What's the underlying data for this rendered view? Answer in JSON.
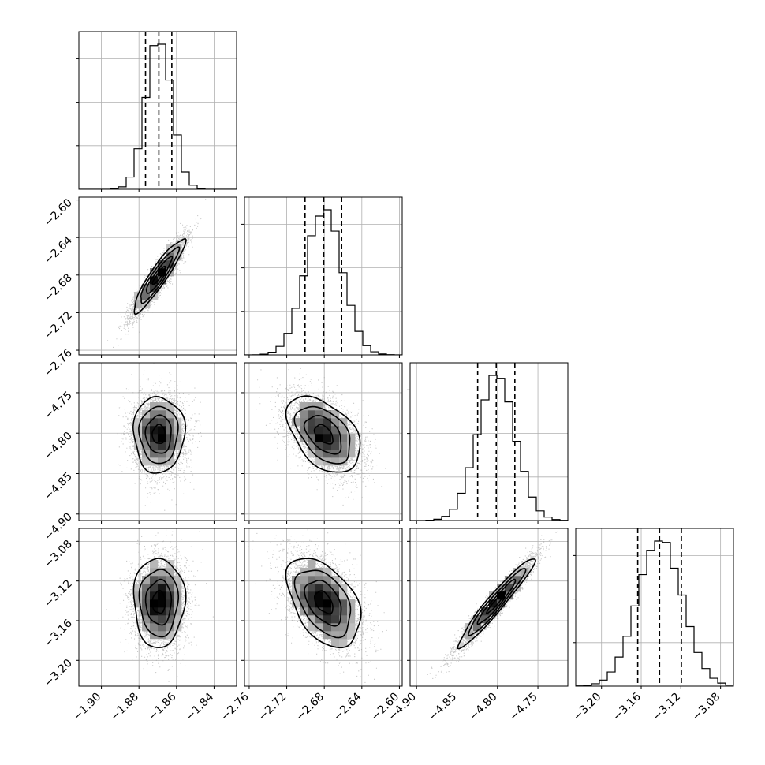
{
  "chart_data": {
    "type": "corner",
    "grid": true,
    "samples_per_pair": 5000,
    "parameters": [
      {
        "mean": -1.8694,
        "sd": 0.0068,
        "range": [
          -1.912,
          -1.828
        ],
        "ticks": [
          -1.9,
          -1.88,
          -1.86,
          -1.84
        ],
        "tick_labels": [
          "−1.90",
          "−1.88",
          "−1.86",
          "−1.84"
        ],
        "quantiles": [
          -1.8765,
          -1.8694,
          -1.8625
        ]
      },
      {
        "mean": -2.6805,
        "sd": 0.0195,
        "range": [
          -2.765,
          -2.597
        ],
        "ticks": [
          -2.76,
          -2.72,
          -2.68,
          -2.64,
          -2.6
        ],
        "tick_labels": [
          "−2.76",
          "−2.72",
          "−2.68",
          "−2.64",
          "−2.60"
        ],
        "quantiles": [
          -2.7005,
          -2.6805,
          -2.6615
        ]
      },
      {
        "mean": -4.8015,
        "sd": 0.0235,
        "range": [
          -4.908,
          -4.713
        ],
        "ticks": [
          -4.9,
          -4.85,
          -4.8,
          -4.75
        ],
        "tick_labels": [
          "−4.90",
          "−4.85",
          "−4.80",
          "−4.75"
        ],
        "quantiles": [
          -4.8245,
          -4.8015,
          -4.7785
        ]
      },
      {
        "mean": -3.1415,
        "sd": 0.0225,
        "range": [
          -3.226,
          -3.067
        ],
        "ticks": [
          -3.2,
          -3.16,
          -3.12,
          -3.08
        ],
        "tick_labels": [
          "−3.20",
          "−3.16",
          "−3.12",
          "−3.08"
        ],
        "quantiles": [
          -3.1635,
          -3.1415,
          -3.1195
        ]
      }
    ],
    "correlations": [
      [
        1.0,
        0.92,
        0.0,
        0.0
      ],
      [
        0.92,
        1.0,
        -0.45,
        -0.45
      ],
      [
        0.0,
        -0.45,
        1.0,
        0.96
      ],
      [
        0.0,
        -0.45,
        0.96,
        1.0
      ]
    ],
    "contour_levels_sigma": [
      0.5,
      1.0,
      1.5,
      2.0
    ],
    "histogram_bins": 20
  }
}
